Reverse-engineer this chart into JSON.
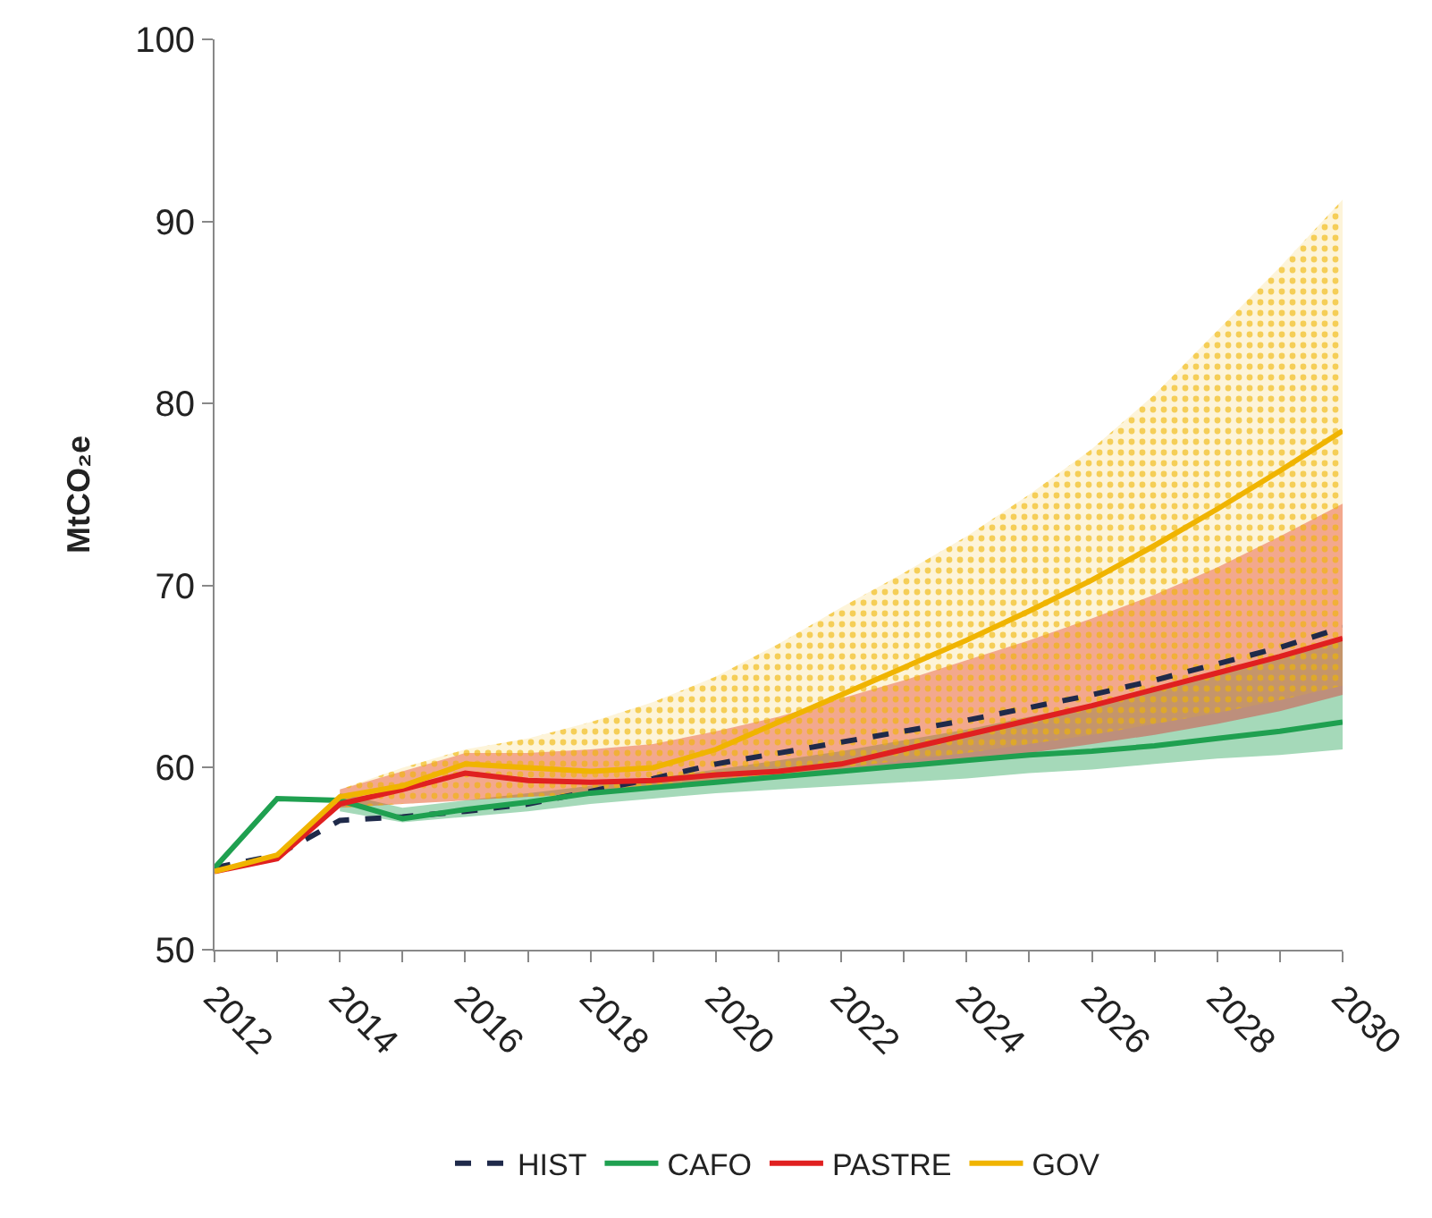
{
  "chart_data": {
    "type": "line",
    "ylabel": "MtCO₂e",
    "x": [
      2012,
      2013,
      2014,
      2015,
      2016,
      2017,
      2018,
      2019,
      2020,
      2021,
      2022,
      2023,
      2024,
      2025,
      2026,
      2027,
      2028,
      2029,
      2030
    ],
    "xlim": [
      2012,
      2030
    ],
    "xticks": [
      2012,
      {
        "value": 2013,
        "label": null
      },
      2014,
      {
        "value": 2015,
        "label": null
      },
      2016,
      {
        "value": 2017,
        "label": null
      },
      2018,
      {
        "value": 2019,
        "label": null
      },
      2020,
      {
        "value": 2021,
        "label": null
      },
      2022,
      {
        "value": 2023,
        "label": null
      },
      2024,
      {
        "value": 2025,
        "label": null
      },
      2026,
      {
        "value": 2027,
        "label": null
      },
      2028,
      {
        "value": 2029,
        "label": null
      },
      2030
    ],
    "ylim": [
      50,
      100
    ],
    "yticks": [
      50,
      60,
      70,
      80,
      90,
      100
    ],
    "grid": false,
    "legend": "bottom",
    "marker": "none",
    "series": [
      {
        "name": "HIST",
        "color": "#1f2a4a",
        "line_style": "dashed",
        "values": [
          54.5,
          55.2,
          57.1,
          57.3,
          57.6,
          58.0,
          58.7,
          59.4,
          60.2,
          60.8,
          61.4,
          62.0,
          62.6,
          63.3,
          64.0,
          64.8,
          65.7,
          66.6,
          67.7
        ]
      },
      {
        "name": "CAFO",
        "color": "#1fa050",
        "values": [
          54.5,
          58.3,
          58.2,
          57.2,
          57.7,
          58.1,
          58.6,
          58.9,
          59.2,
          59.5,
          59.8,
          60.1,
          60.4,
          60.7,
          60.9,
          61.2,
          61.6,
          62.0,
          62.5
        ],
        "lower": [
          null,
          null,
          57.6,
          57.0,
          57.3,
          57.6,
          58.0,
          58.3,
          58.6,
          58.8,
          59.0,
          59.2,
          59.4,
          59.7,
          59.9,
          60.2,
          60.5,
          60.7,
          61.0
        ],
        "upper": [
          null,
          null,
          58.6,
          57.8,
          58.2,
          58.6,
          59.0,
          59.4,
          59.9,
          60.4,
          60.9,
          61.5,
          62.1,
          62.8,
          63.5,
          64.3,
          65.1,
          66.0,
          67.0
        ]
      },
      {
        "name": "PASTRE",
        "color": "#e02020",
        "values": [
          54.3,
          55.0,
          58.0,
          58.8,
          59.7,
          59.3,
          59.2,
          59.3,
          59.6,
          59.8,
          60.2,
          61.0,
          61.8,
          62.6,
          63.4,
          64.3,
          65.2,
          66.1,
          67.1
        ],
        "lower": [
          null,
          null,
          57.8,
          58.0,
          58.2,
          58.4,
          58.6,
          58.8,
          59.1,
          59.4,
          59.7,
          60.0,
          60.4,
          60.8,
          61.3,
          61.8,
          62.4,
          63.1,
          64.0
        ],
        "upper": [
          null,
          null,
          58.8,
          59.8,
          60.8,
          60.8,
          61.0,
          61.3,
          62.0,
          62.8,
          63.8,
          64.8,
          65.9,
          67.0,
          68.2,
          69.5,
          71.0,
          72.7,
          74.5
        ]
      },
      {
        "name": "GOV",
        "color": "#f0b400",
        "values": [
          54.3,
          55.2,
          58.4,
          59.0,
          60.2,
          60.0,
          59.8,
          60.0,
          61.0,
          62.5,
          64.0,
          65.5,
          67.0,
          68.6,
          70.3,
          72.2,
          74.2,
          76.3,
          78.5
        ],
        "lower": [
          null,
          null,
          57.8,
          58.0,
          58.2,
          58.4,
          58.5,
          58.8,
          59.2,
          59.6,
          60.0,
          60.4,
          60.8,
          61.3,
          61.8,
          62.4,
          63.0,
          63.7,
          64.5
        ],
        "upper": [
          null,
          null,
          58.8,
          60.0,
          61.0,
          61.6,
          62.5,
          63.6,
          65.0,
          66.8,
          68.8,
          70.7,
          72.7,
          75.0,
          77.5,
          80.5,
          84.0,
          87.5,
          91.2
        ]
      }
    ]
  }
}
